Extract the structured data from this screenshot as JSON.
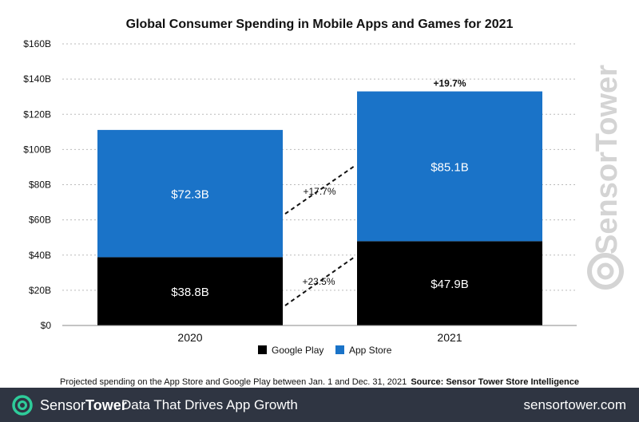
{
  "chart_data": {
    "type": "bar",
    "stacked": true,
    "title": "Global Consumer Spending in Mobile Apps and Games for 2021",
    "categories": [
      "2020",
      "2021"
    ],
    "series": [
      {
        "name": "Google Play",
        "values": [
          38.8,
          47.9
        ],
        "labels": [
          "$38.8B",
          "$47.9B"
        ],
        "color": "#000000"
      },
      {
        "name": "App Store",
        "values": [
          72.3,
          85.1
        ],
        "labels": [
          "$72.3B",
          "$85.1B"
        ],
        "color": "#1a73c8"
      }
    ],
    "ylim": [
      0,
      160
    ],
    "yticks": [
      0,
      20,
      40,
      60,
      80,
      100,
      120,
      140,
      160
    ],
    "ytick_labels": [
      "$0",
      "$20B",
      "$40B",
      "$60B",
      "$80B",
      "$100B",
      "$120B",
      "$140B",
      "$160B"
    ],
    "grid": true,
    "legend": "bottom-center",
    "annotations": {
      "total_growth": "+19.7%",
      "app_store_growth": "+17.7%",
      "google_play_growth": "+23.5%"
    },
    "watermark": "SensorTower"
  },
  "notes": {
    "left": "Projected spending on the App Store and Google Play between Jan. 1 and Dec. 31, 2021",
    "right": "Source: Sensor Tower Store Intelligence"
  },
  "footer": {
    "brand_part1": "Sensor",
    "brand_part2": "Tower",
    "tagline": "Data That Drives App Growth",
    "url": "sensortower.com"
  },
  "colors": {
    "app_store": "#1a73c8",
    "google_play": "#000000",
    "footer_bg": "#2f3542",
    "logo": "#2ecc9a"
  },
  "icons": {
    "logo": "sensortower-logo-icon"
  }
}
